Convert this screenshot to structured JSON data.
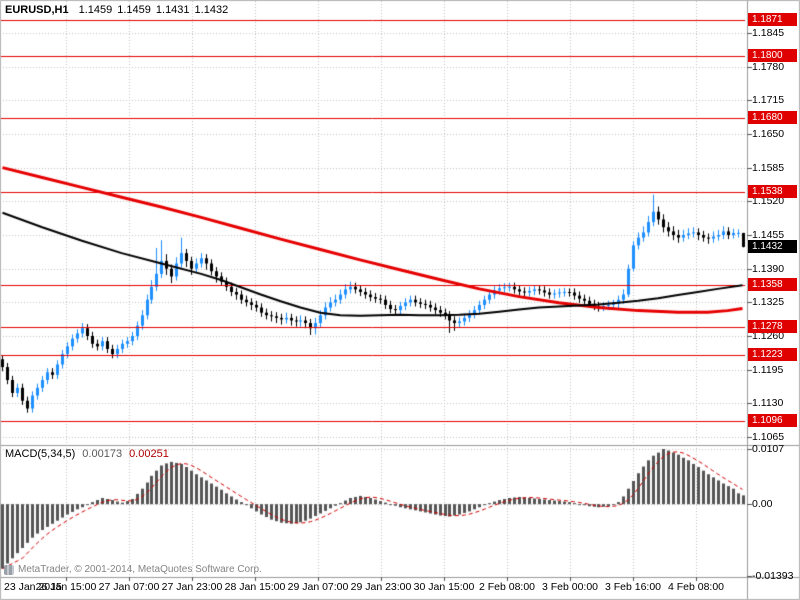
{
  "window": {
    "symbol_period": "EURUSD,H1",
    "open": "1.1459",
    "high": "1.1459",
    "low": "1.1431",
    "close": "1.1432"
  },
  "indicator": {
    "name": "MACD(5,34,5)",
    "macd_value": "0.00173",
    "signal_value": "0.00251"
  },
  "footer": {
    "copyright": "MetaTrader, © 2001-2014, MetaQuotes Software Corp."
  },
  "colors": {
    "bull": "#1E90FF",
    "bear": "#000000",
    "ma_slow_red": "#e60000",
    "ma_fast_black": "#000000",
    "level_line": "#e60000",
    "badge_red": "#df0000",
    "badge_black": "#000000",
    "grid": "#c4c4c4",
    "hist": "#555555",
    "signal": "#d40000",
    "separator": "#9a9a9a",
    "axis_text": "#000000",
    "background": "#ffffff"
  },
  "chart_data": {
    "type": "candlestick",
    "title": "EURUSD,H1",
    "price_axis": {
      "ticks": [
        "1.1845",
        "1.1780",
        "1.1715",
        "1.1650",
        "1.1585",
        "1.1520",
        "1.1455",
        "1.1390",
        "1.1325",
        "1.1260",
        "1.1195",
        "1.1130",
        "1.1065"
      ],
      "ylim": [
        1.1065,
        1.1845
      ]
    },
    "time_axis": {
      "labels": [
        "23 Jan 2015",
        "26 Jan 15:00",
        "27 Jan 07:00",
        "27 Jan 23:00",
        "28 Jan 15:00",
        "29 Jan 07:00",
        "29 Jan 23:00",
        "30 Jan 15:00",
        "2 Feb 08:00",
        "3 Feb 00:00",
        "3 Feb 16:00",
        "4 Feb 08:00"
      ]
    },
    "levels": [
      1.1871,
      1.18,
      1.168,
      1.1538,
      1.1358,
      1.1278,
      1.1223,
      1.1096
    ],
    "current_price": 1.1432,
    "candles": [
      [
        1.1215,
        1.1223,
        1.1192,
        1.12
      ],
      [
        1.12,
        1.1208,
        1.1167,
        1.1175
      ],
      [
        1.1175,
        1.1183,
        1.1142,
        1.115
      ],
      [
        1.115,
        1.1168,
        1.1142,
        1.116
      ],
      [
        1.116,
        1.1168,
        1.1127,
        1.1135
      ],
      [
        1.1135,
        1.1143,
        1.1112,
        1.112
      ],
      [
        1.112,
        1.1153,
        1.1112,
        1.1145
      ],
      [
        1.1145,
        1.1168,
        1.1137,
        1.116
      ],
      [
        1.116,
        1.1183,
        1.1152,
        1.1175
      ],
      [
        1.1175,
        1.1198,
        1.1167,
        1.119
      ],
      [
        1.119,
        1.1198,
        1.1177,
        1.1185
      ],
      [
        1.1185,
        1.1213,
        1.1177,
        1.1205
      ],
      [
        1.1205,
        1.1233,
        1.1197,
        1.1225
      ],
      [
        1.1225,
        1.1248,
        1.1217,
        1.124
      ],
      [
        1.124,
        1.1263,
        1.1232,
        1.1255
      ],
      [
        1.1255,
        1.1273,
        1.1247,
        1.1265
      ],
      [
        1.1265,
        1.1285,
        1.1257,
        1.1275
      ],
      [
        1.1275,
        1.1283,
        1.1252,
        1.126
      ],
      [
        1.126,
        1.1268,
        1.1237,
        1.1245
      ],
      [
        1.1245,
        1.1253,
        1.1232,
        1.124
      ],
      [
        1.124,
        1.1258,
        1.1232,
        1.125
      ],
      [
        1.125,
        1.1258,
        1.1227,
        1.1235
      ],
      [
        1.1235,
        1.1243,
        1.1217,
        1.1225
      ],
      [
        1.1225,
        1.1243,
        1.1217,
        1.1235
      ],
      [
        1.1235,
        1.1253,
        1.1227,
        1.1245
      ],
      [
        1.1245,
        1.1258,
        1.1237,
        1.125
      ],
      [
        1.125,
        1.1268,
        1.1242,
        1.126
      ],
      [
        1.126,
        1.1288,
        1.1252,
        1.128
      ],
      [
        1.128,
        1.131,
        1.1272,
        1.13
      ],
      [
        1.13,
        1.134,
        1.1292,
        1.133
      ],
      [
        1.133,
        1.1368,
        1.1322,
        1.1355
      ],
      [
        1.1355,
        1.143,
        1.1347,
        1.138
      ],
      [
        1.138,
        1.1445,
        1.1372,
        1.1405
      ],
      [
        1.1405,
        1.1418,
        1.1378,
        1.139
      ],
      [
        1.139,
        1.1398,
        1.1362,
        1.1375
      ],
      [
        1.1375,
        1.1412,
        1.1367,
        1.14
      ],
      [
        1.14,
        1.145,
        1.1392,
        1.142
      ],
      [
        1.142,
        1.1428,
        1.1393,
        1.1405
      ],
      [
        1.1405,
        1.1413,
        1.1378,
        1.139
      ],
      [
        1.139,
        1.141,
        1.1382,
        1.14
      ],
      [
        1.14,
        1.142,
        1.1392,
        1.141
      ],
      [
        1.141,
        1.1418,
        1.1388,
        1.14
      ],
      [
        1.14,
        1.1408,
        1.1377,
        1.1385
      ],
      [
        1.1385,
        1.1393,
        1.1363,
        1.1375
      ],
      [
        1.1375,
        1.1383,
        1.1357,
        1.1365
      ],
      [
        1.1365,
        1.1373,
        1.1347,
        1.1355
      ],
      [
        1.1355,
        1.1363,
        1.1337,
        1.1345
      ],
      [
        1.1345,
        1.1353,
        1.133,
        1.134
      ],
      [
        1.134,
        1.1348,
        1.1322,
        1.133
      ],
      [
        1.133,
        1.1338,
        1.1317,
        1.1325
      ],
      [
        1.1325,
        1.1333,
        1.131,
        1.132
      ],
      [
        1.132,
        1.1328,
        1.1307,
        1.1315
      ],
      [
        1.1315,
        1.1323,
        1.1297,
        1.1305
      ],
      [
        1.1305,
        1.1313,
        1.1292,
        1.13
      ],
      [
        1.13,
        1.1308,
        1.1288,
        1.1298
      ],
      [
        1.1298,
        1.1306,
        1.1285,
        1.1295
      ],
      [
        1.1295,
        1.1303,
        1.1282,
        1.1292
      ],
      [
        1.1292,
        1.1305,
        1.1284,
        1.1295
      ],
      [
        1.1295,
        1.1303,
        1.128,
        1.129
      ],
      [
        1.129,
        1.1298,
        1.1278,
        1.1288
      ],
      [
        1.1288,
        1.13,
        1.1278,
        1.129
      ],
      [
        1.129,
        1.1298,
        1.1275,
        1.1285
      ],
      [
        1.1285,
        1.1293,
        1.1262,
        1.1275
      ],
      [
        1.1275,
        1.1295,
        1.1263,
        1.1285
      ],
      [
        1.1285,
        1.131,
        1.1277,
        1.13
      ],
      [
        1.13,
        1.1325,
        1.1292,
        1.1315
      ],
      [
        1.1315,
        1.1335,
        1.1307,
        1.1325
      ],
      [
        1.1325,
        1.134,
        1.1317,
        1.133
      ],
      [
        1.133,
        1.135,
        1.1322,
        1.134
      ],
      [
        1.134,
        1.136,
        1.1332,
        1.135
      ],
      [
        1.135,
        1.1365,
        1.1342,
        1.1355
      ],
      [
        1.1355,
        1.1363,
        1.1342,
        1.135
      ],
      [
        1.135,
        1.1358,
        1.1337,
        1.1345
      ],
      [
        1.1345,
        1.1353,
        1.1332,
        1.134
      ],
      [
        1.134,
        1.1348,
        1.1327,
        1.1335
      ],
      [
        1.1335,
        1.1343,
        1.1324,
        1.1332
      ],
      [
        1.1332,
        1.134,
        1.1322,
        1.133
      ],
      [
        1.133,
        1.1338,
        1.1312,
        1.132
      ],
      [
        1.132,
        1.1328,
        1.1304,
        1.1312
      ],
      [
        1.1312,
        1.132,
        1.13,
        1.131
      ],
      [
        1.131,
        1.1326,
        1.1302,
        1.1318
      ],
      [
        1.1318,
        1.1333,
        1.131,
        1.1325
      ],
      [
        1.1325,
        1.1338,
        1.1317,
        1.133
      ],
      [
        1.133,
        1.1338,
        1.1317,
        1.1325
      ],
      [
        1.1325,
        1.1333,
        1.1314,
        1.1322
      ],
      [
        1.1322,
        1.133,
        1.1312,
        1.132
      ],
      [
        1.132,
        1.1328,
        1.1307,
        1.1315
      ],
      [
        1.1315,
        1.1323,
        1.1302,
        1.131
      ],
      [
        1.131,
        1.1318,
        1.1297,
        1.1305
      ],
      [
        1.1305,
        1.1313,
        1.1292,
        1.13
      ],
      [
        1.13,
        1.1308,
        1.1266,
        1.129
      ],
      [
        1.129,
        1.1298,
        1.127,
        1.1285
      ],
      [
        1.1285,
        1.1296,
        1.1277,
        1.1288
      ],
      [
        1.1288,
        1.1303,
        1.128,
        1.1295
      ],
      [
        1.1295,
        1.131,
        1.1287,
        1.1302
      ],
      [
        1.1302,
        1.1318,
        1.1294,
        1.131
      ],
      [
        1.131,
        1.1328,
        1.1302,
        1.132
      ],
      [
        1.132,
        1.1338,
        1.1312,
        1.133
      ],
      [
        1.133,
        1.1348,
        1.1322,
        1.134
      ],
      [
        1.134,
        1.1356,
        1.1332,
        1.1348
      ],
      [
        1.1348,
        1.136,
        1.134,
        1.1352
      ],
      [
        1.1352,
        1.1362,
        1.1344,
        1.1354
      ],
      [
        1.1354,
        1.1363,
        1.1346,
        1.1355
      ],
      [
        1.1355,
        1.1363,
        1.1342,
        1.135
      ],
      [
        1.135,
        1.1358,
        1.1338,
        1.1346
      ],
      [
        1.1346,
        1.1354,
        1.1336,
        1.1344
      ],
      [
        1.1344,
        1.1355,
        1.1336,
        1.1347
      ],
      [
        1.1347,
        1.1358,
        1.1339,
        1.135
      ],
      [
        1.135,
        1.1358,
        1.134,
        1.1348
      ],
      [
        1.1348,
        1.1356,
        1.1336,
        1.1344
      ],
      [
        1.1344,
        1.1352,
        1.1332,
        1.134
      ],
      [
        1.134,
        1.135,
        1.1332,
        1.1342
      ],
      [
        1.1342,
        1.1352,
        1.1334,
        1.1344
      ],
      [
        1.1344,
        1.1353,
        1.1336,
        1.1345
      ],
      [
        1.1345,
        1.1352,
        1.1336,
        1.1344
      ],
      [
        1.1344,
        1.1352,
        1.133,
        1.1338
      ],
      [
        1.1338,
        1.1346,
        1.1324,
        1.1332
      ],
      [
        1.1332,
        1.134,
        1.132,
        1.1328
      ],
      [
        1.1328,
        1.1336,
        1.1314,
        1.1322
      ],
      [
        1.1322,
        1.133,
        1.131,
        1.1318
      ],
      [
        1.1318,
        1.1326,
        1.1307,
        1.1315
      ],
      [
        1.1315,
        1.1326,
        1.1308,
        1.1318
      ],
      [
        1.1318,
        1.1328,
        1.131,
        1.132
      ],
      [
        1.132,
        1.133,
        1.1312,
        1.1322
      ],
      [
        1.1322,
        1.1338,
        1.1314,
        1.133
      ],
      [
        1.133,
        1.135,
        1.1322,
        1.134
      ],
      [
        1.134,
        1.1398,
        1.1335,
        1.139
      ],
      [
        1.139,
        1.1443,
        1.1385,
        1.1435
      ],
      [
        1.1435,
        1.146,
        1.1427,
        1.145
      ],
      [
        1.145,
        1.1472,
        1.1442,
        1.146
      ],
      [
        1.146,
        1.1492,
        1.1452,
        1.148
      ],
      [
        1.148,
        1.1533,
        1.1472,
        1.15
      ],
      [
        1.15,
        1.151,
        1.1475,
        1.1485
      ],
      [
        1.1485,
        1.1495,
        1.146,
        1.147
      ],
      [
        1.147,
        1.148,
        1.1452,
        1.1462
      ],
      [
        1.1462,
        1.1472,
        1.1445,
        1.1455
      ],
      [
        1.1455,
        1.1465,
        1.144,
        1.145
      ],
      [
        1.145,
        1.1465,
        1.1442,
        1.1455
      ],
      [
        1.1455,
        1.1468,
        1.1447,
        1.1458
      ],
      [
        1.1458,
        1.147,
        1.145,
        1.146
      ],
      [
        1.146,
        1.1468,
        1.1445,
        1.1455
      ],
      [
        1.1455,
        1.1463,
        1.1442,
        1.145
      ],
      [
        1.145,
        1.1458,
        1.1438,
        1.1448
      ],
      [
        1.1448,
        1.1462,
        1.144,
        1.1452
      ],
      [
        1.1452,
        1.1465,
        1.1444,
        1.1455
      ],
      [
        1.1455,
        1.1472,
        1.1447,
        1.1462
      ],
      [
        1.1462,
        1.147,
        1.1447,
        1.1455
      ],
      [
        1.1455,
        1.1467,
        1.1448,
        1.1459
      ],
      [
        1.1459,
        1.1466,
        1.145,
        1.1459
      ],
      [
        1.1459,
        1.1459,
        1.1431,
        1.1432
      ]
    ],
    "ma_red_waypoints": [
      [
        0,
        1.1585
      ],
      [
        8,
        1.1566
      ],
      [
        16,
        1.1547
      ],
      [
        24,
        1.1528
      ],
      [
        32,
        1.1509
      ],
      [
        40,
        1.1489
      ],
      [
        48,
        1.1468
      ],
      [
        56,
        1.1447
      ],
      [
        64,
        1.1427
      ],
      [
        72,
        1.1407
      ],
      [
        80,
        1.1388
      ],
      [
        88,
        1.1369
      ],
      [
        96,
        1.1351
      ],
      [
        104,
        1.1336
      ],
      [
        112,
        1.1324
      ],
      [
        120,
        1.1315
      ],
      [
        128,
        1.1309
      ],
      [
        136,
        1.1306
      ],
      [
        142,
        1.1306
      ],
      [
        146,
        1.1309
      ],
      [
        149,
        1.1313
      ]
    ],
    "ma_black_waypoints": [
      [
        0,
        1.1498
      ],
      [
        8,
        1.147
      ],
      [
        16,
        1.1444
      ],
      [
        24,
        1.142
      ],
      [
        32,
        1.14
      ],
      [
        40,
        1.138
      ],
      [
        44,
        1.1368
      ],
      [
        48,
        1.1354
      ],
      [
        52,
        1.134
      ],
      [
        56,
        1.1327
      ],
      [
        60,
        1.1315
      ],
      [
        64,
        1.1305
      ],
      [
        68,
        1.13
      ],
      [
        72,
        1.1299
      ],
      [
        76,
        1.13
      ],
      [
        80,
        1.1301
      ],
      [
        84,
        1.13
      ],
      [
        88,
        1.13
      ],
      [
        92,
        1.1301
      ],
      [
        96,
        1.1303
      ],
      [
        100,
        1.1307
      ],
      [
        104,
        1.1311
      ],
      [
        108,
        1.1315
      ],
      [
        112,
        1.1317
      ],
      [
        116,
        1.1319
      ],
      [
        120,
        1.1321
      ],
      [
        124,
        1.1324
      ],
      [
        128,
        1.1328
      ],
      [
        132,
        1.1333
      ],
      [
        136,
        1.1339
      ],
      [
        140,
        1.1345
      ],
      [
        144,
        1.1351
      ],
      [
        149,
        1.1358
      ]
    ],
    "macd": {
      "ticks": [
        "0.0107",
        "0.00",
        "-0.01393"
      ],
      "ylim": [
        -0.01393,
        0.0107
      ],
      "signal_period": 5,
      "values": [
        -0.0125,
        -0.0115,
        -0.0105,
        -0.0095,
        -0.0085,
        -0.0075,
        -0.0065,
        -0.0057,
        -0.005,
        -0.0044,
        -0.0038,
        -0.0032,
        -0.0026,
        -0.002,
        -0.0015,
        -0.001,
        -0.0006,
        -0.0001,
        0.0004,
        0.0008,
        0.0012,
        0.001,
        0.0008,
        0.0005,
        0.0003,
        0.0006,
        0.001,
        0.002,
        0.003,
        0.0042,
        0.0055,
        0.0065,
        0.0075,
        0.0079,
        0.0082,
        0.008,
        0.0078,
        0.0072,
        0.0065,
        0.0058,
        0.0052,
        0.0046,
        0.004,
        0.0034,
        0.0028,
        0.0021,
        0.0015,
        0.0009,
        0.0004,
        -0.0002,
        -0.0008,
        -0.0014,
        -0.002,
        -0.0025,
        -0.003,
        -0.0033,
        -0.0036,
        -0.0037,
        -0.0038,
        -0.0037,
        -0.0035,
        -0.0032,
        -0.0028,
        -0.0023,
        -0.0018,
        -0.0013,
        -0.0008,
        -0.0003,
        0.0002,
        0.0007,
        0.0012,
        0.0014,
        0.0016,
        0.0014,
        0.0012,
        0.0009,
        0.0006,
        0.0003,
        0.0,
        -0.0003,
        -0.0006,
        -0.0008,
        -0.001,
        -0.0012,
        -0.0014,
        -0.0016,
        -0.0018,
        -0.002,
        -0.0022,
        -0.0023,
        -0.0024,
        -0.0022,
        -0.002,
        -0.0017,
        -0.0014,
        -0.001,
        -0.0006,
        -0.0002,
        0.0002,
        0.0005,
        0.0008,
        0.001,
        0.0012,
        0.0013,
        0.0014,
        0.0013,
        0.0012,
        0.0011,
        0.001,
        0.0009,
        0.0008,
        0.0007,
        0.0006,
        0.0005,
        0.0004,
        0.0002,
        0.0,
        -0.0002,
        -0.0004,
        -0.0005,
        -0.0006,
        -0.0005,
        -0.0004,
        -0.0001,
        0.0004,
        0.0015,
        0.003,
        0.0045,
        0.006,
        0.0073,
        0.0085,
        0.0094,
        0.01,
        0.0107,
        0.0104,
        0.01,
        0.0096,
        0.009,
        0.0085,
        0.0078,
        0.0072,
        0.0065,
        0.0058,
        0.0052,
        0.0046,
        0.004,
        0.0035,
        0.003,
        0.0021,
        0.0017
      ]
    }
  }
}
